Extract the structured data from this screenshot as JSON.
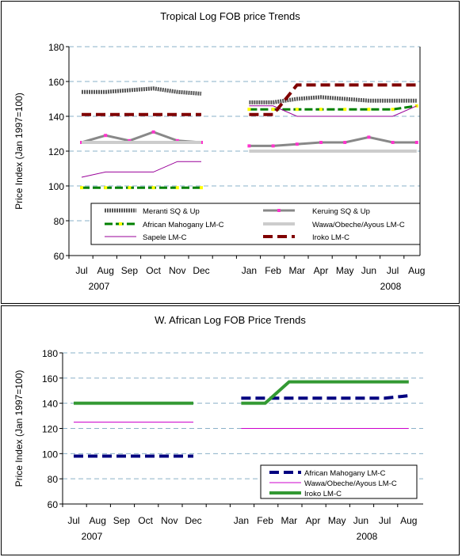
{
  "chart_data": [
    {
      "type": "line",
      "title": "Tropical Log FOB price Trends",
      "xlabel": "",
      "ylabel": "Price Index (Jan 1997=100)",
      "ylim": [
        60,
        180
      ],
      "yticks": [
        60,
        80,
        100,
        120,
        140,
        160,
        180
      ],
      "categories": [
        "Jul",
        "Aug",
        "Sep",
        "Oct",
        "Nov",
        "Dec",
        "",
        "Jan",
        "Feb",
        "Mar",
        "Apr",
        "May",
        "Jun",
        "Jul",
        "Aug"
      ],
      "year_labels": [
        "2007",
        "2008"
      ],
      "grid": "horizontal dashed",
      "legend_position": "bottom inside plot",
      "series": [
        {
          "name": "Meranti SQ & Up",
          "color": "#555555",
          "style": "thick dotted",
          "values": [
            154,
            154,
            155,
            156,
            154,
            153,
            null,
            148,
            148,
            150,
            151,
            150,
            149,
            149,
            149
          ]
        },
        {
          "name": "Keruing SQ & Up",
          "color": "#888888",
          "marker_color": "#ff33cc",
          "style": "solid markers",
          "values": [
            125,
            129,
            126,
            131,
            126,
            125,
            null,
            123,
            123,
            124,
            125,
            125,
            128,
            125,
            125
          ]
        },
        {
          "name": "African Mahogany LM-C",
          "color": "#008000",
          "marker_color": "#ffff00",
          "style": "dashed markers",
          "values": [
            99,
            99,
            99,
            99,
            99,
            99,
            null,
            144,
            144,
            144,
            144,
            144,
            144,
            144,
            146
          ]
        },
        {
          "name": "Wawa/Obeche/Ayous LM-C",
          "color": "#cccccc",
          "style": "thick solid",
          "values": [
            125,
            125,
            125,
            125,
            125,
            125,
            null,
            120,
            120,
            120,
            120,
            120,
            120,
            120,
            120
          ]
        },
        {
          "name": "Sapele LM-C",
          "color": "#990099",
          "style": "thin solid",
          "values": [
            105,
            108,
            108,
            108,
            114,
            114,
            null,
            146,
            146,
            140,
            140,
            140,
            140,
            140,
            146
          ]
        },
        {
          "name": "Iroko LM-C",
          "color": "#800000",
          "style": "thick dashed",
          "values": [
            141,
            141,
            141,
            141,
            141,
            141,
            null,
            141,
            141,
            158,
            158,
            158,
            158,
            158,
            158
          ]
        }
      ]
    },
    {
      "type": "line",
      "title": "W. African Log FOB Price Trends",
      "xlabel": "",
      "ylabel": "Price Index (Jan 1997=100)",
      "ylim": [
        60,
        180
      ],
      "yticks": [
        60,
        80,
        100,
        120,
        140,
        160,
        180
      ],
      "categories": [
        "Jul",
        "Aug",
        "Sep",
        "Oct",
        "Nov",
        "Dec",
        "",
        "Jan",
        "Feb",
        "Mar",
        "Apr",
        "May",
        "Jun",
        "Jul",
        "Aug"
      ],
      "year_labels": [
        "2007",
        "2008"
      ],
      "grid": "horizontal dashed",
      "legend_position": "bottom-right",
      "series": [
        {
          "name": "African Mahogany LM-C",
          "color": "#000080",
          "style": "thick dashed",
          "values": [
            98,
            98,
            98,
            98,
            98,
            98,
            null,
            144,
            144,
            144,
            144,
            144,
            144,
            144,
            146
          ]
        },
        {
          "name": "Wawa/Obeche/Ayous LM-C",
          "color": "#cc00cc",
          "style": "thin solid",
          "values": [
            125,
            125,
            125,
            125,
            125,
            125,
            null,
            120,
            120,
            120,
            120,
            120,
            120,
            120,
            120
          ]
        },
        {
          "name": "Iroko LM-C",
          "color": "#339933",
          "style": "thick solid",
          "values": [
            140,
            140,
            140,
            140,
            140,
            140,
            null,
            140,
            140,
            157,
            157,
            157,
            157,
            157,
            157
          ]
        }
      ]
    }
  ]
}
